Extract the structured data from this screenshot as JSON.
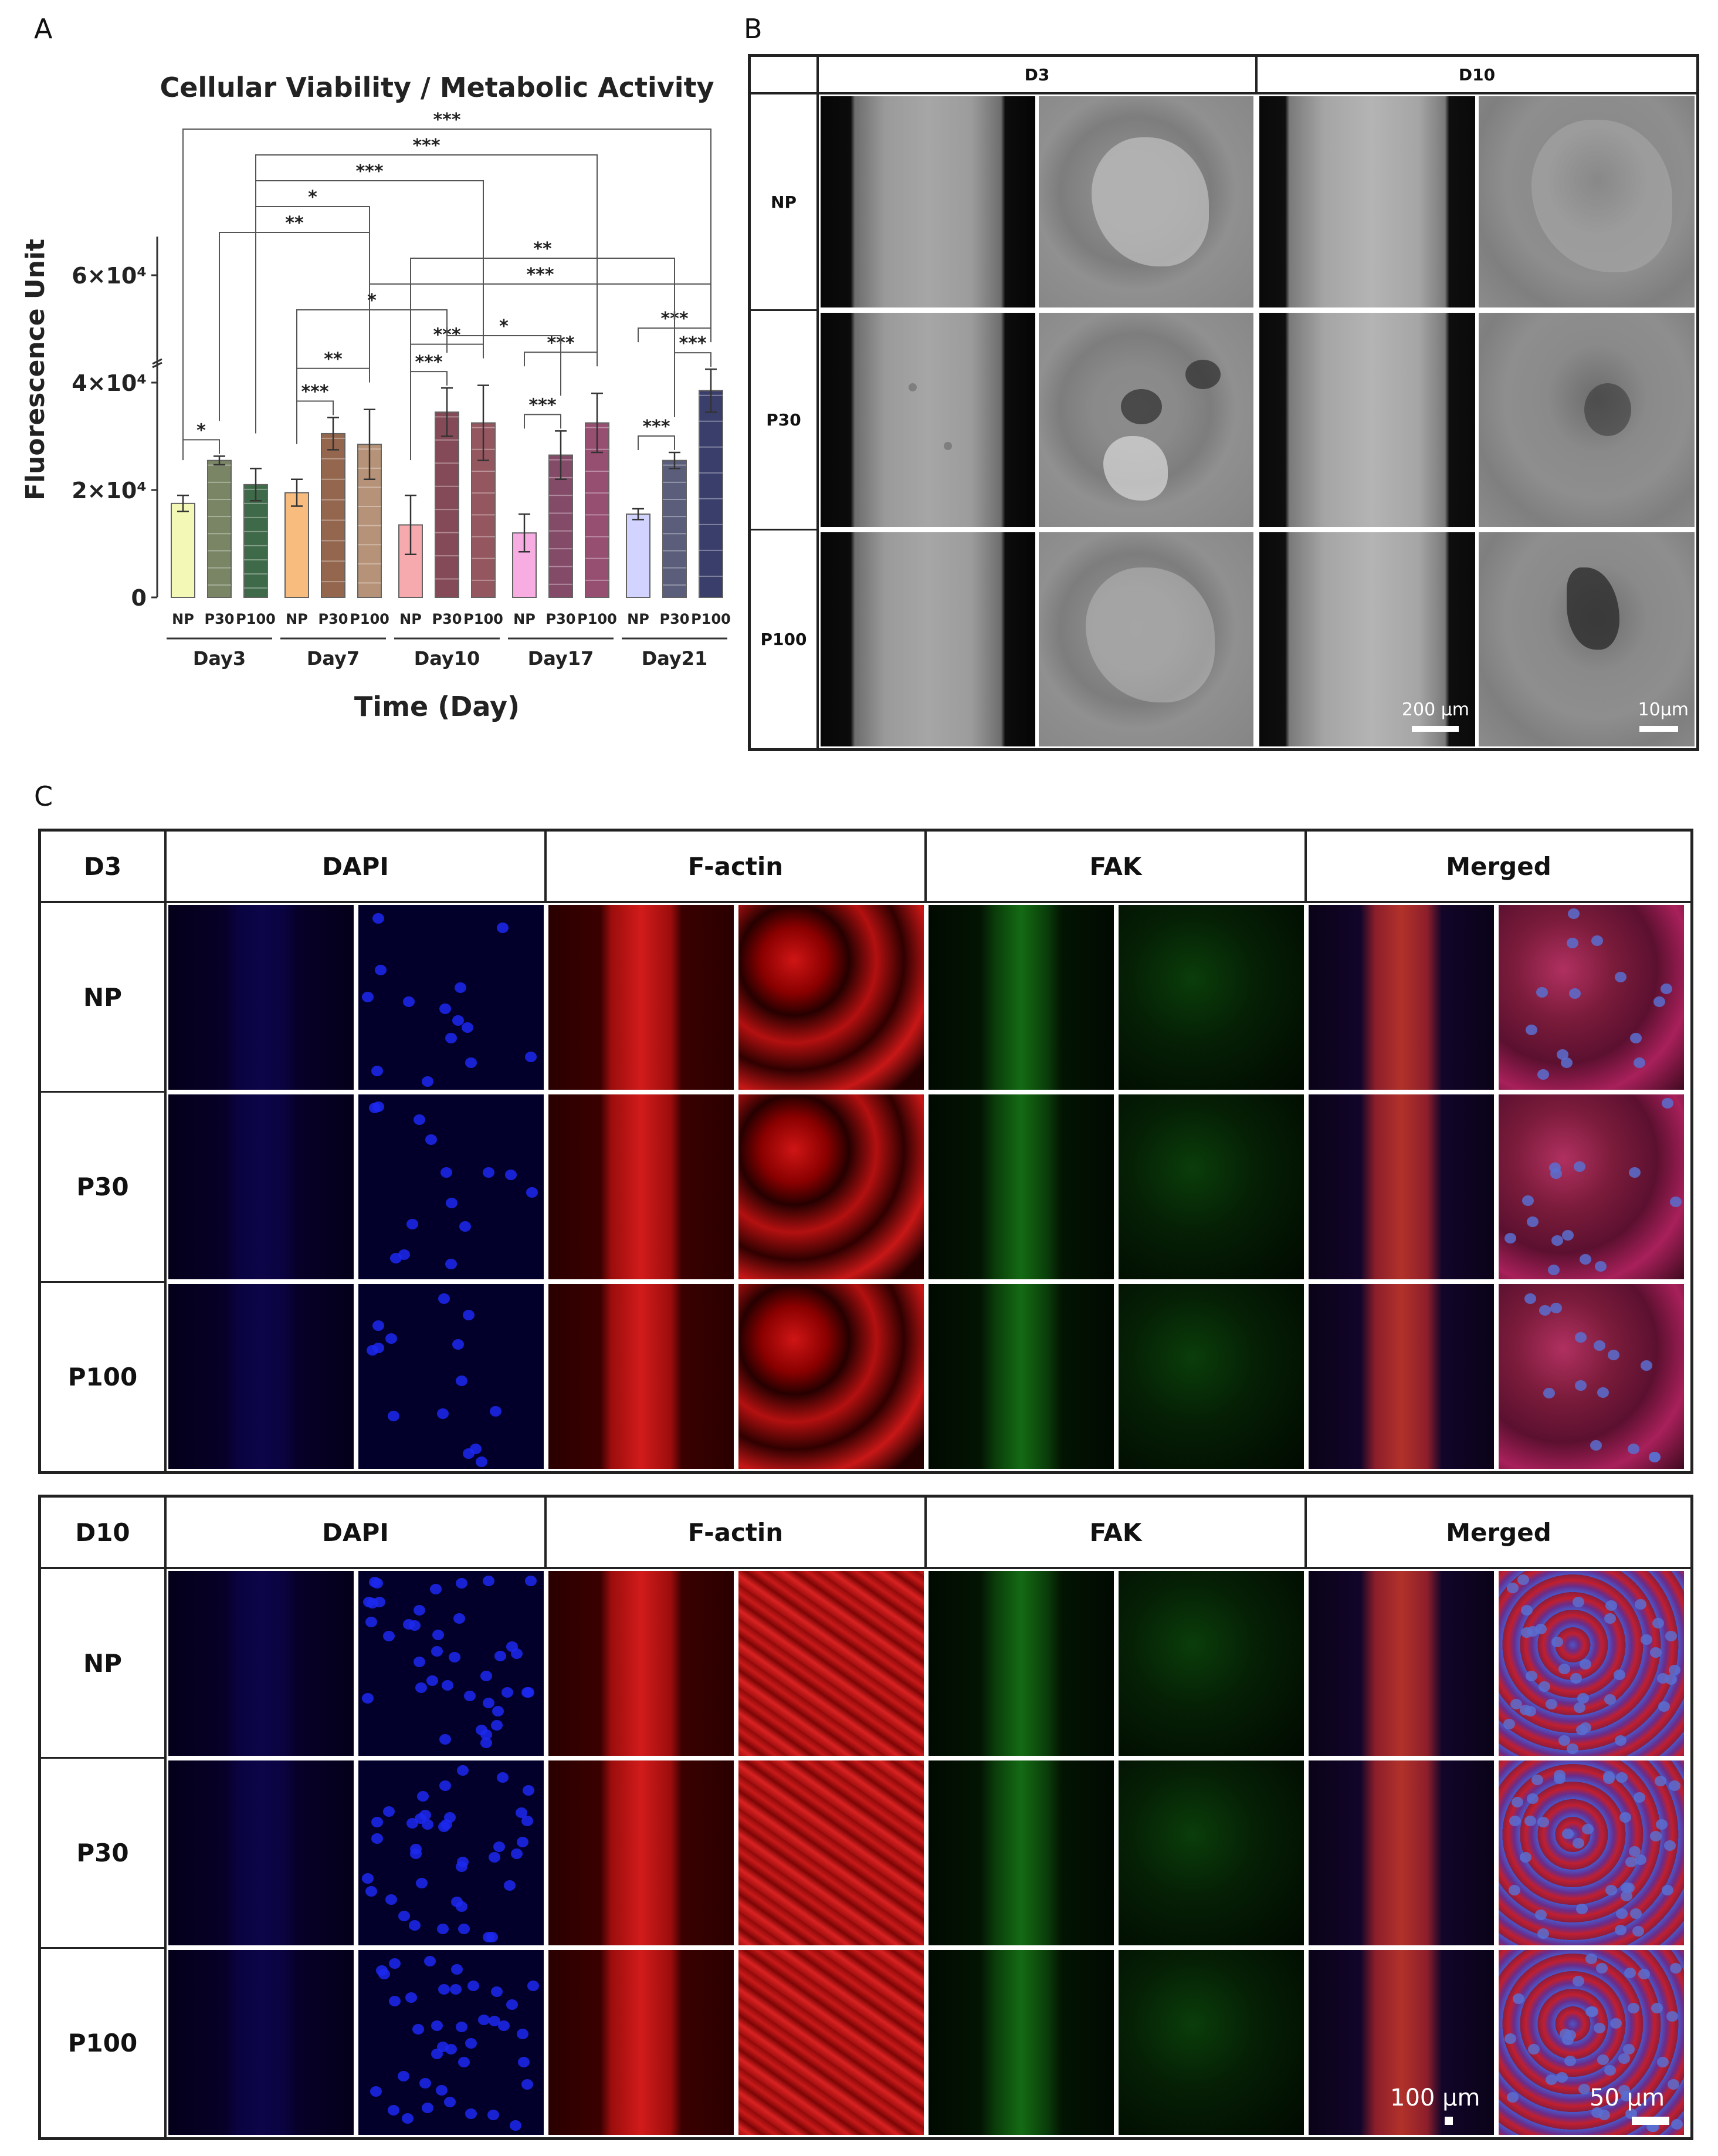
{
  "panel_labels": {
    "a": "A",
    "b": "B",
    "c": "C"
  },
  "colors": {
    "bar_np": [
      "#f3f8b0",
      "#f9b775",
      "#f6a3a8",
      "#f7a7df",
      "#cfd0ff"
    ],
    "bar_p30": [
      "#6e7b57",
      "#8c5a3e",
      "#7a3b4a",
      "#7a3c5c",
      "#4e5170"
    ],
    "bar_p100": [
      "#2f5e3a",
      "#b08a6d",
      "#8b4852",
      "#8e3f66",
      "#2a2e5e"
    ]
  },
  "chart_data": {
    "type": "bar",
    "title": "Cellular Viability / Metabolic Activity",
    "xlabel": "Time (Day)",
    "ylabel": "Fluorescence Unit",
    "yticks": [
      "0",
      "2×10⁴",
      "4×10⁴",
      "6×10⁴"
    ],
    "ytick_values": [
      0,
      20000,
      40000,
      60000
    ],
    "ylim": [
      0,
      65000
    ],
    "axis_break": true,
    "groups": [
      "Day3",
      "Day7",
      "Day10",
      "Day17",
      "Day21"
    ],
    "subcategories": [
      "NP",
      "P30",
      "P100"
    ],
    "series": [
      {
        "name": "NP",
        "values": [
          17500,
          19500,
          13500,
          12000,
          15500
        ],
        "errors": [
          1500,
          2500,
          5500,
          3500,
          1000
        ]
      },
      {
        "name": "P30",
        "values": [
          25500,
          30500,
          34500,
          26500,
          25500
        ],
        "errors": [
          800,
          3000,
          4500,
          4500,
          1500
        ]
      },
      {
        "name": "P100",
        "values": [
          21000,
          28500,
          32500,
          32500,
          38500
        ],
        "errors": [
          3000,
          6500,
          7000,
          5500,
          4000
        ]
      }
    ],
    "significance": [
      {
        "label": "*",
        "from": [
          0,
          0
        ],
        "to": [
          0,
          1
        ]
      },
      {
        "label": "***",
        "from": [
          1,
          0
        ],
        "to": [
          1,
          1
        ]
      },
      {
        "label": "**",
        "from": [
          1,
          0
        ],
        "to": [
          1,
          2
        ]
      },
      {
        "label": "***",
        "from": [
          2,
          0
        ],
        "to": [
          2,
          1
        ]
      },
      {
        "label": "***",
        "from": [
          2,
          0
        ],
        "to": [
          2,
          2
        ]
      },
      {
        "label": "***",
        "from": [
          3,
          0
        ],
        "to": [
          3,
          1
        ]
      },
      {
        "label": "***",
        "from": [
          3,
          0
        ],
        "to": [
          3,
          2
        ]
      },
      {
        "label": "***",
        "from": [
          4,
          0
        ],
        "to": [
          4,
          1
        ]
      },
      {
        "label": "***",
        "from": [
          4,
          0
        ],
        "to": [
          4,
          2
        ]
      },
      {
        "label": "***",
        "from": [
          4,
          1
        ],
        "to": [
          4,
          2
        ]
      },
      {
        "label": "***",
        "from": [
          0,
          0
        ],
        "to": [
          4,
          2
        ]
      },
      {
        "label": "***",
        "from": [
          0,
          2
        ],
        "to": [
          3,
          2
        ]
      },
      {
        "label": "***",
        "from": [
          0,
          2
        ],
        "to": [
          2,
          2
        ]
      },
      {
        "label": "*",
        "from": [
          0,
          2
        ],
        "to": [
          1,
          2
        ]
      },
      {
        "label": "**",
        "from": [
          0,
          1
        ],
        "to": [
          1,
          2
        ]
      },
      {
        "label": "**",
        "from": [
          2,
          0
        ],
        "to": [
          4,
          1
        ]
      },
      {
        "label": "***",
        "from": [
          1,
          2
        ],
        "to": [
          4,
          2
        ]
      },
      {
        "label": "*",
        "from": [
          1,
          0
        ],
        "to": [
          2,
          1
        ]
      },
      {
        "label": "*",
        "from": [
          2,
          1
        ],
        "to": [
          3,
          1
        ]
      }
    ]
  },
  "panel_b": {
    "columns": [
      "D3",
      "D10"
    ],
    "rows": [
      "NP",
      "P30",
      "P100"
    ],
    "scale_wide": "200 µm",
    "scale_close": "10µm"
  },
  "panel_c": {
    "blocks": [
      {
        "day": "D3",
        "channels": [
          "DAPI",
          "F-actin",
          "FAK",
          "Merged"
        ],
        "rows": [
          "NP",
          "P30",
          "P100"
        ]
      },
      {
        "day": "D10",
        "channels": [
          "DAPI",
          "F-actin",
          "FAK",
          "Merged"
        ],
        "rows": [
          "NP",
          "P30",
          "P100"
        ]
      }
    ],
    "scale_wide": "100 µm",
    "scale_close": "50 µm"
  }
}
